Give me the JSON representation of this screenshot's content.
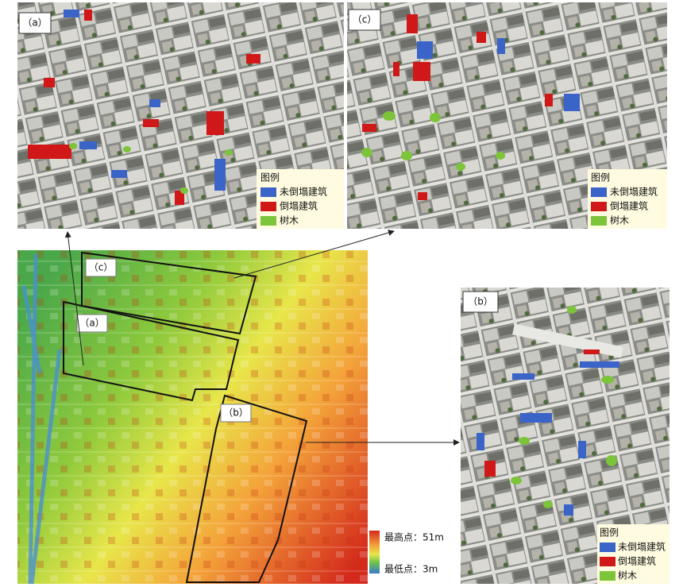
{
  "panels": [
    {
      "label": "（a）",
      "legend": {
        "title": "图例",
        "items": [
          "未倒塌建筑",
          "倒塌建筑",
          "树木"
        ]
      }
    },
    {
      "label": "（c）",
      "legend": {
        "title": "图例",
        "items": [
          "未倒塌建筑",
          "倒塌建筑",
          "树木"
        ]
      }
    },
    {
      "label": "（b）",
      "legend": {
        "title": "图例",
        "items": [
          "未倒塌建筑",
          "倒塌建筑",
          "树木"
        ]
      }
    }
  ],
  "dem": {
    "regions": [
      "（c）",
      "（a）",
      "（b）"
    ],
    "legend": {
      "max": "最高点：51m",
      "min": "最低点：3m"
    }
  }
}
